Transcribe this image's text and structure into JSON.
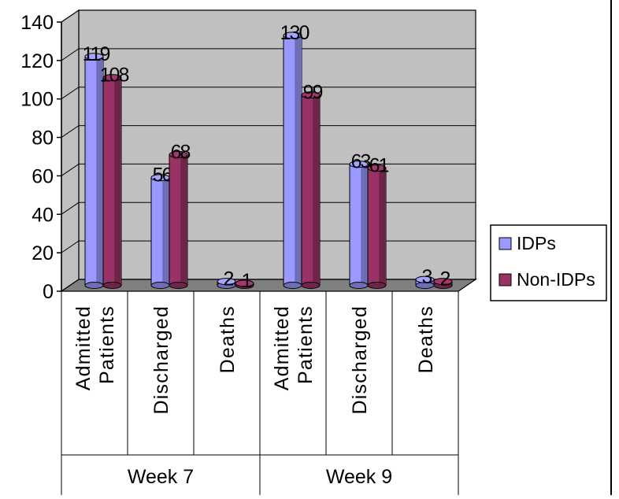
{
  "chart_data": {
    "type": "bar",
    "title": "",
    "xlabel": "",
    "ylabel": "",
    "ylim": [
      0,
      140
    ],
    "yticks": [
      0,
      20,
      40,
      60,
      80,
      100,
      120,
      140
    ],
    "grid": true,
    "legend_position": "right",
    "groups": [
      {
        "label": "Week 7",
        "categories": [
          [
            "Admitted",
            "Patients"
          ],
          [
            "Discharged"
          ],
          [
            "Deaths"
          ]
        ]
      },
      {
        "label": "Week 9",
        "categories": [
          [
            "Admitted",
            "Patients"
          ],
          [
            "Discharged"
          ],
          [
            "Deaths"
          ]
        ]
      }
    ],
    "series": [
      {
        "name": "IDPs",
        "color": "#9999ff",
        "values": [
          119,
          56,
          2,
          130,
          63,
          3
        ]
      },
      {
        "name": "Non-IDPs",
        "color": "#993366",
        "values": [
          108,
          68,
          1,
          99,
          61,
          2
        ]
      }
    ],
    "colors": {
      "wall": "#c0c0c0",
      "floor": "#808080",
      "text": "#000000"
    }
  }
}
